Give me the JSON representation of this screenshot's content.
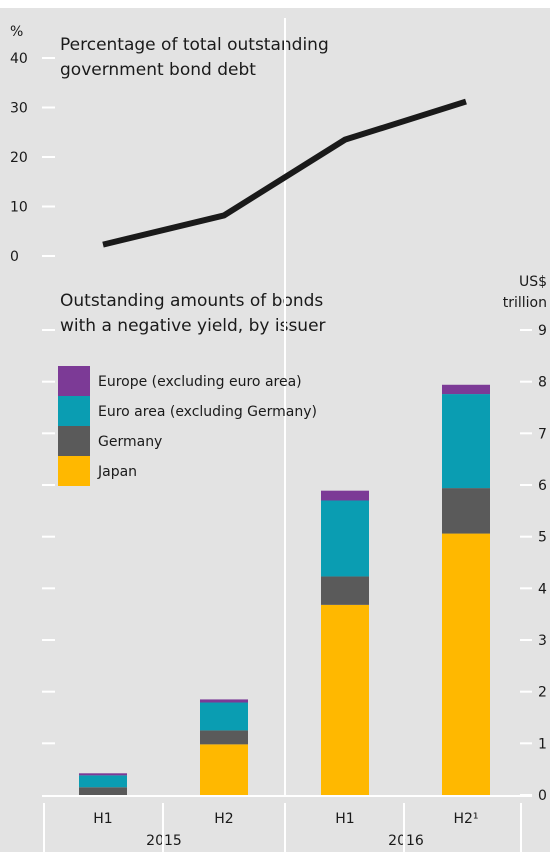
{
  "chart_data": [
    {
      "type": "line",
      "title": [
        "Percentage of total outstanding",
        "government bond debt"
      ],
      "unit": "%",
      "x": [
        "2015 H1",
        "2015 H2",
        "2016 H1",
        "2016 H2"
      ],
      "values": [
        2.3,
        8.2,
        23.5,
        31.2
      ],
      "ylim": [
        0,
        40
      ],
      "yticks": [
        0,
        10,
        20,
        30,
        40
      ],
      "color": "#1a1a1a"
    },
    {
      "type": "bar",
      "stacked": true,
      "title": [
        "Outstanding amounts of bonds",
        "with a negative yield, by issuer"
      ],
      "unit": [
        "US$",
        "trillion"
      ],
      "categories": [
        "H1",
        "H2",
        "H1",
        "H2¹"
      ],
      "years": [
        "2015",
        "2016"
      ],
      "ylim": [
        0,
        9
      ],
      "yticks": [
        0,
        1,
        2,
        3,
        4,
        5,
        6,
        7,
        8,
        9
      ],
      "legend_position": "top-left",
      "grid": false,
      "series": [
        {
          "name": "Japan",
          "color": "#FFB800",
          "values": [
            0.0,
            0.98,
            3.68,
            5.06
          ]
        },
        {
          "name": "Germany",
          "color": "#5A5A5A",
          "values": [
            0.15,
            0.27,
            0.55,
            0.88
          ]
        },
        {
          "name": "Euro area (excluding Germany)",
          "color": "#0A9DB2",
          "values": [
            0.23,
            0.54,
            1.47,
            1.82
          ]
        },
        {
          "name": "Europe (excluding euro area)",
          "color": "#7C3A96",
          "values": [
            0.04,
            0.06,
            0.19,
            0.18
          ]
        }
      ]
    }
  ],
  "background_color": "#E3E3E3"
}
